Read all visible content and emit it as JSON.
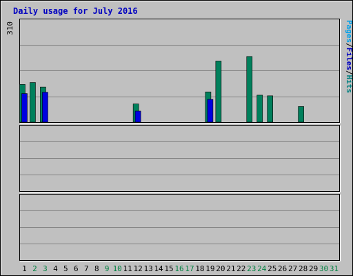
{
  "chart_data": {
    "type": "bar",
    "title": "Daily usage for July 2016",
    "categories": [
      "1",
      "2",
      "3",
      "4",
      "5",
      "6",
      "7",
      "8",
      "9",
      "10",
      "11",
      "12",
      "13",
      "14",
      "15",
      "16",
      "17",
      "18",
      "19",
      "20",
      "21",
      "22",
      "23",
      "24",
      "25",
      "26",
      "27",
      "28",
      "29",
      "30",
      "31"
    ],
    "weekend_days": [
      "2",
      "3",
      "9",
      "10",
      "16",
      "17",
      "23",
      "24",
      "30",
      "31"
    ],
    "panels": [
      {
        "id": "hits",
        "max_label": "310",
        "ylim": [
          0,
          310
        ],
        "axis_label": [
          "Pages",
          "/",
          "Files",
          "/",
          "Hits"
        ],
        "axis_label_colors": [
          "#00a0e8",
          "#000000",
          "#0000c0",
          "#000000",
          "#008080"
        ],
        "series": [
          {
            "name": "Hits",
            "color": "#00805c",
            "values": [
              116,
              122,
              108,
              0,
              0,
              0,
              0,
              0,
              0,
              0,
              0,
              56,
              0,
              0,
              0,
              0,
              0,
              0,
              93,
              188,
              0,
              0,
              202,
              83,
              81,
              0,
              0,
              48,
              0,
              0,
              0
            ]
          },
          {
            "name": "Files",
            "color": "#0000e0",
            "values": [
              88,
              0,
              92,
              0,
              0,
              0,
              0,
              0,
              0,
              0,
              0,
              34,
              0,
              0,
              0,
              0,
              0,
              0,
              70,
              0,
              0,
              0,
              0,
              0,
              0,
              0,
              0,
              0,
              0,
              0,
              0
            ]
          },
          {
            "name": "Pages",
            "color": "#00c0ff",
            "values": [
              0,
              0,
              0,
              0,
              0,
              0,
              0,
              0,
              0,
              0,
              0,
              0,
              0,
              0,
              0,
              0,
              0,
              0,
              0,
              0,
              0,
              0,
              0,
              0,
              0,
              0,
              0,
              0,
              0,
              0,
              0
            ]
          }
        ]
      }
    ]
  }
}
